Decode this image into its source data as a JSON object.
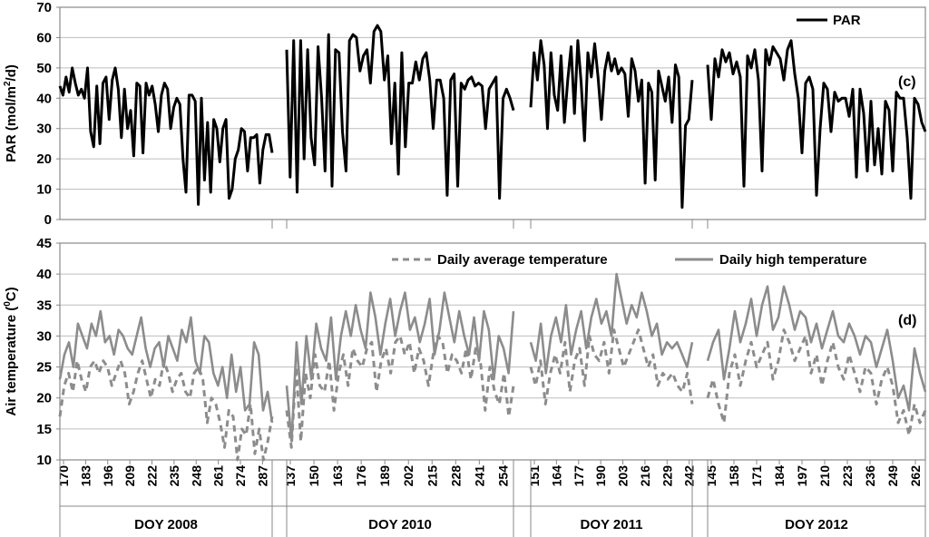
{
  "chart_data": [
    {
      "type": "line",
      "panel_label": "(c)",
      "ylabel_prefix": "PAR (mol/m",
      "ylabel_sup": "2",
      "ylabel_suffix": "/d)",
      "ylim": [
        0,
        70
      ],
      "yticks": [
        "0",
        "10",
        "20",
        "30",
        "40",
        "50",
        "60",
        "70"
      ],
      "grid": true,
      "legend_position": "top-right",
      "series": [
        {
          "name": "PAR",
          "color": "#000000",
          "style": "solid",
          "segments": [
            [
              44,
              41,
              47,
              42,
              50,
              45,
              41,
              43,
              40,
              50,
              29,
              24,
              44,
              25,
              45,
              47,
              33,
              46,
              50,
              43,
              27,
              43,
              30,
              36,
              21,
              45,
              44,
              22,
              45,
              41,
              44,
              38,
              29,
              41,
              45,
              43,
              30,
              37,
              40,
              38,
              20,
              9,
              41,
              41,
              39,
              5,
              40,
              13,
              32,
              9,
              33,
              30,
              19,
              30,
              33,
              7,
              10,
              20,
              23,
              30,
              29,
              16,
              27,
              27,
              28,
              12,
              23,
              28,
              28,
              22
            ],
            [
              56,
              14,
              59,
              9,
              59,
              20,
              56,
              27,
              18,
              57,
              40,
              16,
              61,
              11,
              56,
              55,
              29,
              16,
              59,
              61,
              60,
              49,
              54,
              56,
              45,
              62,
              64,
              62,
              46,
              54,
              25,
              45,
              15,
              55,
              24,
              45,
              45,
              52,
              46,
              53,
              55,
              46,
              30,
              46,
              46,
              40,
              8,
              46,
              48,
              11,
              45,
              43,
              46,
              47,
              44,
              45,
              44,
              30,
              43,
              45,
              47,
              7,
              40,
              43,
              40,
              36
            ],
            [
              37,
              55,
              46,
              59,
              51,
              30,
              55,
              41,
              36,
              54,
              32,
              46,
              57,
              35,
              59,
              45,
              26,
              55,
              47,
              58,
              47,
              33,
              49,
              55,
              49,
              53,
              48,
              50,
              48,
              34,
              53,
              49,
              39,
              46,
              12,
              45,
              42,
              13,
              49,
              44,
              39,
              47,
              32,
              51,
              47,
              4,
              31,
              33,
              46
            ],
            [
              51,
              33,
              53,
              47,
              56,
              52,
              55,
              48,
              52,
              47,
              11,
              54,
              50,
              56,
              46,
              16,
              56,
              51,
              57,
              55,
              53,
              46,
              56,
              59,
              48,
              40,
              22,
              45,
              47,
              43,
              8,
              30,
              45,
              43,
              29,
              42,
              39,
              40,
              40,
              34,
              43,
              14,
              43,
              35,
              16,
              39,
              18,
              30,
              15,
              39,
              36,
              16,
              42,
              40,
              40,
              27,
              7,
              40,
              38,
              32,
              29
            ]
          ]
        }
      ]
    },
    {
      "type": "line",
      "panel_label": "(d)",
      "ylabel_prefix": "Air temperature (",
      "ylabel_sup": "0",
      "ylabel_suffix": "C)",
      "ylim": [
        10,
        45
      ],
      "yticks": [
        "10",
        "15",
        "20",
        "25",
        "30",
        "35",
        "40",
        "45"
      ],
      "grid": true,
      "legend_position": "top",
      "x_tick_labels": [
        [
          "170",
          "183",
          "196",
          "209",
          "222",
          "235",
          "248",
          "261",
          "274",
          "287"
        ],
        [
          "137",
          "150",
          "163",
          "176",
          "189",
          "202",
          "215",
          "228",
          "241",
          "254"
        ],
        [
          "151",
          "164",
          "177",
          "190",
          "203",
          "216",
          "229",
          "242"
        ],
        [
          "145",
          "158",
          "171",
          "184",
          "197",
          "210",
          "223",
          "236",
          "249",
          "262"
        ]
      ],
      "x_groups": [
        "DOY 2008",
        "DOY 2010",
        "DOY 2011",
        "DOY 2012"
      ],
      "series": [
        {
          "name": "Daily average temperature",
          "color": "#8c8c8c",
          "style": "dashed",
          "segments": [
            [
              17,
              22,
              24,
              21,
              26,
              23,
              21,
              25,
              26,
              24,
              26,
              25,
              22,
              24,
              26,
              24,
              19,
              21,
              24,
              26,
              23,
              20,
              23,
              22,
              26,
              24,
              21,
              23,
              24,
              21,
              20,
              24,
              25,
              23,
              16,
              20,
              19,
              16,
              12,
              18,
              17,
              10,
              15,
              14,
              19,
              11,
              15,
              10,
              13,
              17
            ],
            [
              18,
              12,
              25,
              13,
              24,
              20,
              27,
              22,
              21,
              26,
              18,
              24,
              27,
              22,
              28,
              26,
              25,
              28,
              29,
              21,
              26,
              28,
              24,
              29,
              30,
              27,
              29,
              24,
              28,
              26,
              22,
              27,
              30,
              29,
              24,
              27,
              26,
              24,
              28,
              23,
              28,
              26,
              18,
              25,
              21,
              19,
              24,
              17,
              22
            ],
            [
              25,
              22,
              26,
              19,
              24,
              27,
              24,
              29,
              21,
              26,
              28,
              22,
              30,
              27,
              26,
              29,
              24,
              31,
              28,
              25,
              27,
              29,
              31,
              28,
              25,
              27,
              22,
              24,
              23,
              24,
              22,
              21,
              24,
              19
            ],
            [
              20,
              23,
              19,
              16,
              24,
              27,
              22,
              26,
              29,
              25,
              27,
              29,
              23,
              26,
              31,
              29,
              26,
              28,
              30,
              24,
              27,
              22,
              26,
              29,
              25,
              23,
              27,
              24,
              21,
              25,
              24,
              19,
              23,
              25,
              22,
              16,
              18,
              14,
              19,
              16,
              18
            ]
          ]
        },
        {
          "name": "Daily high temperature",
          "color": "#8c8c8c",
          "style": "solid",
          "segments": [
            [
              23,
              27,
              29,
              25,
              32,
              30,
              28,
              32,
              30,
              34,
              29,
              30,
              27,
              31,
              30,
              28,
              27,
              30,
              33,
              28,
              25,
              28,
              29,
              25,
              30,
              28,
              26,
              31,
              29,
              33,
              26,
              24,
              30,
              29,
              24,
              22,
              25,
              20,
              27,
              21,
              25,
              18,
              19,
              29,
              27,
              18,
              21,
              16
            ],
            [
              22,
              13,
              29,
              19,
              30,
              23,
              32,
              28,
              26,
              33,
              23,
              30,
              34,
              30,
              35,
              31,
              28,
              37,
              33,
              27,
              32,
              36,
              30,
              34,
              37,
              31,
              33,
              29,
              32,
              36,
              27,
              31,
              37,
              33,
              29,
              34,
              30,
              27,
              33,
              26,
              34,
              31,
              23,
              30,
              28,
              24,
              34
            ],
            [
              29,
              26,
              32,
              24,
              30,
              33,
              29,
              35,
              27,
              31,
              34,
              28,
              33,
              36,
              32,
              34,
              30,
              40,
              36,
              32,
              35,
              33,
              37,
              34,
              30,
              32,
              27,
              29,
              28,
              29,
              27,
              25,
              29
            ],
            [
              26,
              29,
              31,
              23,
              28,
              34,
              29,
              32,
              36,
              30,
              35,
              38,
              31,
              33,
              38,
              35,
              31,
              34,
              33,
              29,
              32,
              28,
              31,
              34,
              30,
              29,
              32,
              30,
              27,
              30,
              29,
              25,
              28,
              31,
              26,
              20,
              22,
              18,
              28,
              24,
              21
            ]
          ]
        }
      ]
    }
  ]
}
